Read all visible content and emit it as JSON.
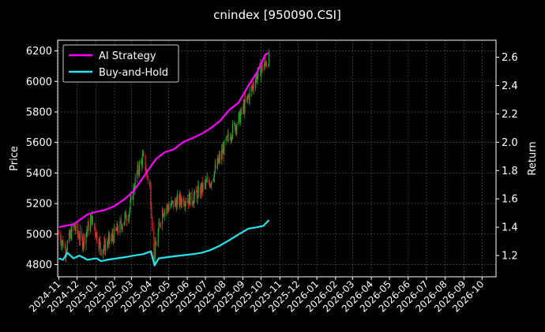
{
  "chart_data": {
    "type": "line",
    "title": "cnindex [950090.CSI]",
    "ylabel_left": "Price",
    "ylabel_right": "Return",
    "x_range": [
      "2024-10-30",
      "2026-10-24"
    ],
    "ylim_left": [
      4720,
      6270
    ],
    "ylim_right": [
      1.05,
      2.72
    ],
    "yticks_left": [
      4800,
      5000,
      5200,
      5400,
      5600,
      5800,
      6000,
      6200
    ],
    "yticks_right": [
      1.2,
      1.4,
      1.6,
      1.8,
      2.0,
      2.2,
      2.4,
      2.6
    ],
    "xticks": [
      {
        "date": "2024-11-01",
        "label": "2024-11"
      },
      {
        "date": "2024-12-01",
        "label": "2024-12"
      },
      {
        "date": "2025-01-01",
        "label": "2025-01"
      },
      {
        "date": "2025-02-01",
        "label": "2025-02"
      },
      {
        "date": "2025-03-01",
        "label": "2025-03"
      },
      {
        "date": "2025-04-01",
        "label": "2025-04"
      },
      {
        "date": "2025-05-01",
        "label": "2025-05"
      },
      {
        "date": "2025-06-01",
        "label": "2025-06"
      },
      {
        "date": "2025-07-01",
        "label": "2025-07"
      },
      {
        "date": "2025-08-01",
        "label": "2025-08"
      },
      {
        "date": "2025-09-01",
        "label": "2025-09"
      },
      {
        "date": "2025-10-01",
        "label": "2025-10"
      },
      {
        "date": "2025-11-01",
        "label": "2025-11"
      },
      {
        "date": "2025-12-01",
        "label": "2025-12"
      },
      {
        "date": "2026-01-01",
        "label": "2026-01"
      },
      {
        "date": "2026-02-01",
        "label": "2026-02"
      },
      {
        "date": "2026-03-01",
        "label": "2026-03"
      },
      {
        "date": "2026-04-01",
        "label": "2026-04"
      },
      {
        "date": "2026-05-01",
        "label": "2026-05"
      },
      {
        "date": "2026-06-01",
        "label": "2026-06"
      },
      {
        "date": "2026-07-01",
        "label": "2026-07"
      },
      {
        "date": "2026-08-01",
        "label": "2026-08"
      },
      {
        "date": "2026-09-01",
        "label": "2026-09"
      },
      {
        "date": "2026-10-01",
        "label": "2026-10"
      }
    ],
    "grid": true,
    "legend_position": "top-left",
    "series": [
      {
        "name": "AI Strategy",
        "axis": "right",
        "color": "#ff00ff",
        "points": [
          [
            "2024-11-01",
            1.4
          ],
          [
            "2024-11-12",
            1.41
          ],
          [
            "2024-11-25",
            1.42
          ],
          [
            "2024-12-05",
            1.45
          ],
          [
            "2024-12-18",
            1.49
          ],
          [
            "2025-01-02",
            1.51
          ],
          [
            "2025-01-15",
            1.52
          ],
          [
            "2025-02-01",
            1.55
          ],
          [
            "2025-02-18",
            1.6
          ],
          [
            "2025-03-03",
            1.65
          ],
          [
            "2025-03-15",
            1.72
          ],
          [
            "2025-03-28",
            1.8
          ],
          [
            "2025-04-10",
            1.88
          ],
          [
            "2025-04-25",
            1.93
          ],
          [
            "2025-05-10",
            1.95
          ],
          [
            "2025-05-25",
            2.0
          ],
          [
            "2025-06-10",
            2.03
          ],
          [
            "2025-06-25",
            2.06
          ],
          [
            "2025-07-10",
            2.1
          ],
          [
            "2025-07-25",
            2.15
          ],
          [
            "2025-08-10",
            2.23
          ],
          [
            "2025-08-25",
            2.28
          ],
          [
            "2025-09-10",
            2.4
          ],
          [
            "2025-09-25",
            2.5
          ],
          [
            "2025-10-08",
            2.62
          ],
          [
            "2025-10-14",
            2.63
          ]
        ]
      },
      {
        "name": "Buy-and-Hold",
        "axis": "right",
        "color": "#22e5f0",
        "points": [
          [
            "2024-11-01",
            1.18
          ],
          [
            "2024-11-08",
            1.17
          ],
          [
            "2024-11-15",
            1.22
          ],
          [
            "2024-11-25",
            1.18
          ],
          [
            "2024-12-05",
            1.2
          ],
          [
            "2024-12-18",
            1.17
          ],
          [
            "2025-01-02",
            1.18
          ],
          [
            "2025-01-10",
            1.16
          ],
          [
            "2025-01-20",
            1.17
          ],
          [
            "2025-02-05",
            1.18
          ],
          [
            "2025-02-20",
            1.19
          ],
          [
            "2025-03-05",
            1.2
          ],
          [
            "2025-03-20",
            1.21
          ],
          [
            "2025-04-02",
            1.23
          ],
          [
            "2025-04-08",
            1.13
          ],
          [
            "2025-04-15",
            1.18
          ],
          [
            "2025-05-01",
            1.19
          ],
          [
            "2025-05-20",
            1.2
          ],
          [
            "2025-06-10",
            1.21
          ],
          [
            "2025-06-25",
            1.22
          ],
          [
            "2025-07-10",
            1.24
          ],
          [
            "2025-07-25",
            1.27
          ],
          [
            "2025-08-10",
            1.31
          ],
          [
            "2025-08-25",
            1.35
          ],
          [
            "2025-09-10",
            1.39
          ],
          [
            "2025-09-25",
            1.4
          ],
          [
            "2025-10-05",
            1.41
          ],
          [
            "2025-10-14",
            1.45
          ]
        ]
      }
    ],
    "candlesticks": {
      "axis": "left",
      "up_color": "#2ca02c",
      "down_color": "#d62728",
      "note_points": [
        [
          "2024-11-01",
          5000
        ],
        [
          "2024-11-12",
          4900
        ],
        [
          "2024-11-25",
          5050
        ],
        [
          "2024-12-10",
          4950
        ],
        [
          "2024-12-25",
          5100
        ],
        [
          "2025-01-10",
          4900
        ],
        [
          "2025-01-25",
          4960
        ],
        [
          "2025-02-10",
          5050
        ],
        [
          "2025-02-25",
          5150
        ],
        [
          "2025-03-10",
          5400
        ],
        [
          "2025-03-20",
          5500
        ],
        [
          "2025-04-01",
          5300
        ],
        [
          "2025-04-07",
          4850
        ],
        [
          "2025-04-20",
          5150
        ],
        [
          "2025-05-10",
          5200
        ],
        [
          "2025-05-25",
          5230
        ],
        [
          "2025-06-10",
          5230
        ],
        [
          "2025-06-25",
          5300
        ],
        [
          "2025-07-10",
          5350
        ],
        [
          "2025-07-25",
          5500
        ],
        [
          "2025-08-10",
          5650
        ],
        [
          "2025-08-25",
          5750
        ],
        [
          "2025-09-10",
          5900
        ],
        [
          "2025-09-25",
          6050
        ],
        [
          "2025-10-14",
          6150
        ]
      ]
    }
  }
}
